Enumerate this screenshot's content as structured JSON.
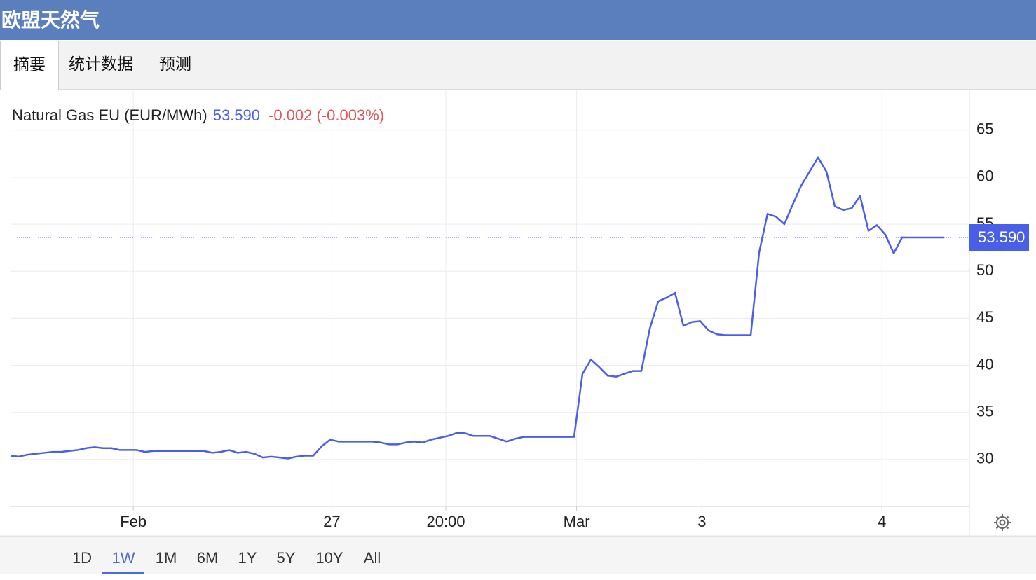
{
  "header": {
    "title": "欧盟天然气"
  },
  "tabs": [
    "摘要",
    "统计数据",
    "预测"
  ],
  "active_tab": 0,
  "ranges": [
    "1D",
    "1W",
    "1M",
    "6M",
    "1Y",
    "5Y",
    "10Y",
    "All"
  ],
  "active_range": 1,
  "chart_data": {
    "type": "line",
    "series_name": "Natural Gas EU (EUR/MWh)",
    "price": "53.590",
    "change": "-0.002 (-0.003%)",
    "current_value": 53.59,
    "color": "#4a5fe8",
    "values": [
      30.4,
      30.3,
      30.5,
      30.6,
      30.7,
      30.8,
      30.8,
      30.9,
      31.0,
      31.2,
      31.3,
      31.2,
      31.2,
      31.0,
      31.0,
      31.0,
      30.8,
      30.9,
      30.9,
      30.9,
      30.9,
      30.9,
      30.9,
      30.9,
      30.7,
      30.8,
      31.0,
      30.7,
      30.8,
      30.6,
      30.2,
      30.3,
      30.2,
      30.1,
      30.3,
      30.4,
      30.4,
      31.4,
      32.1,
      31.9,
      31.9,
      31.9,
      31.9,
      31.9,
      31.8,
      31.6,
      31.6,
      31.8,
      31.9,
      31.8,
      32.1,
      32.3,
      32.5,
      32.8,
      32.8,
      32.5,
      32.5,
      32.5,
      32.2,
      31.9,
      32.2,
      32.4,
      32.4,
      32.4,
      32.4,
      32.4,
      32.4,
      32.4,
      39.1,
      40.6,
      39.8,
      38.9,
      38.8,
      39.1,
      39.4,
      39.4,
      43.9,
      46.8,
      47.2,
      47.7,
      44.2,
      44.6,
      44.7,
      43.7,
      43.3,
      43.2,
      43.2,
      43.2,
      43.2,
      52.0,
      56.1,
      55.8,
      55.0,
      57.1,
      59.1,
      60.6,
      62.1,
      60.6,
      56.9,
      56.5,
      56.7,
      58.0,
      54.3,
      54.9,
      53.9,
      51.9,
      53.6,
      53.59,
      53.59,
      53.59,
      53.59,
      53.59
    ],
    "xlim": [
      0,
      114
    ],
    "xticks": [
      {
        "value": 14.6,
        "label": "Feb"
      },
      {
        "value": 38.2,
        "label": "27"
      },
      {
        "value": 51.75,
        "label": "20:00"
      },
      {
        "value": 67.3,
        "label": "Mar"
      },
      {
        "value": 82.2,
        "label": "3"
      },
      {
        "value": 103.6,
        "label": "4"
      }
    ],
    "ylim": [
      25,
      69.3
    ],
    "yticks": [
      30,
      35,
      40,
      45,
      50,
      55,
      60,
      65
    ],
    "grid": true
  }
}
